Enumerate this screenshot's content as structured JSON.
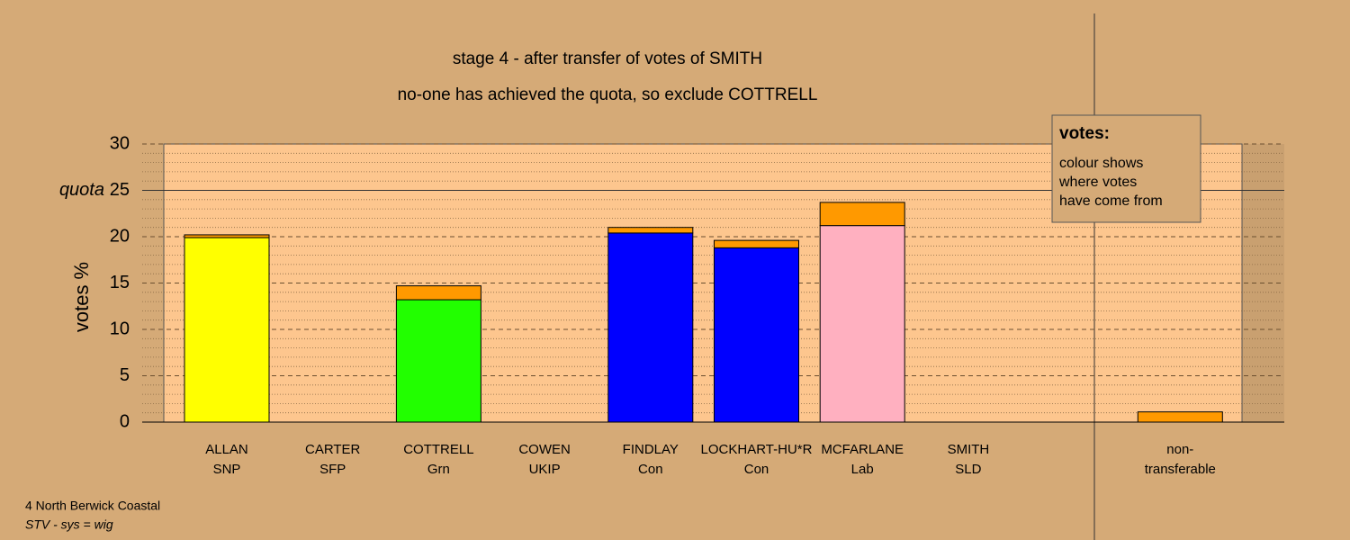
{
  "chart_data": {
    "type": "bar",
    "title": "stage 4 - after transfer of votes of SMITH",
    "subtitle": "no-one has achieved the quota, so exclude COTTRELL",
    "y_label": "votes %",
    "categories": [
      "ALLAN",
      "CARTER",
      "COTTRELL",
      "COWEN",
      "FINDLAY",
      "LOCKHART-HU*R",
      "MCFARLANE",
      "SMITH",
      null,
      "non-"
    ],
    "parties": [
      "SNP",
      "SFP",
      "Grn",
      "UKIP",
      "Con",
      "Con",
      "Lab",
      "SLD",
      null,
      "transferable"
    ],
    "series": [
      {
        "colors": [
          "#ffff00",
          "#ffff00",
          "#22ff00",
          "#ffff00",
          "#0000ff",
          "#0000ff",
          "#ffb0c0",
          "#ffff00",
          null,
          "#ff9900"
        ],
        "values": [
          19.9,
          0,
          13.2,
          0,
          20.4,
          18.8,
          21.2,
          0,
          null,
          0
        ]
      },
      {
        "color": "#ff9900",
        "values": [
          0.3,
          0,
          1.5,
          0,
          0.6,
          0.8,
          2.5,
          0,
          null,
          1.1
        ]
      }
    ],
    "ylim": [
      0,
      30
    ],
    "yticks": [
      0,
      5,
      10,
      15,
      20,
      25,
      30
    ],
    "minor_yticks": [
      1,
      2,
      3,
      4,
      6,
      7,
      8,
      9,
      11,
      12,
      13,
      14,
      16,
      17,
      18,
      19,
      21,
      22,
      23,
      24,
      26,
      27,
      28,
      29
    ],
    "quota": {
      "value": 25,
      "label": "quota"
    },
    "legend": {
      "title": "votes:",
      "lines": [
        "colour shows",
        "where votes",
        "have come from"
      ]
    },
    "footer": [
      "4 North Berwick Coastal",
      "STV - sys = wig"
    ]
  }
}
